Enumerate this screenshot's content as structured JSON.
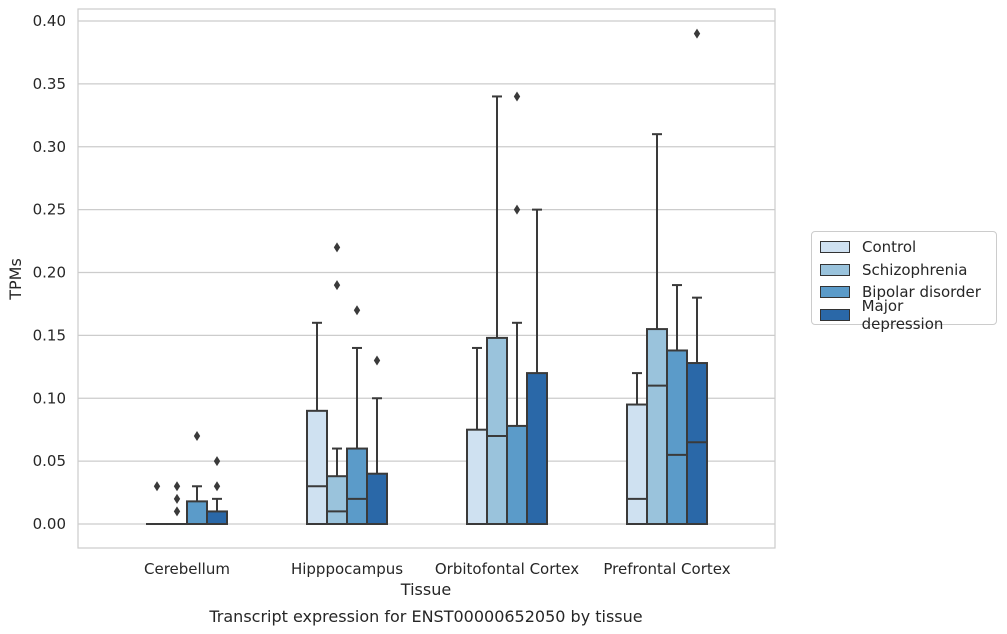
{
  "chart_data": {
    "type": "box",
    "xlabel": "Tissue",
    "ylabel": "TPMs",
    "caption": "Transcript expression for ENST00000652050 by tissue",
    "ylim": [
      -0.018,
      0.41
    ],
    "yticks": [
      "0.00",
      "0.05",
      "0.10",
      "0.15",
      "0.20",
      "0.25",
      "0.30",
      "0.35",
      "0.40"
    ],
    "ytick_values": [
      0,
      0.05,
      0.1,
      0.15,
      0.2,
      0.25,
      0.3,
      0.35,
      0.4
    ],
    "grid": true,
    "legend_position": "right",
    "categories": [
      "Cerebellum",
      "Hipppocampus",
      "Orbitofontal Cortex",
      "Prefrontal Cortex"
    ],
    "series": [
      {
        "name": "Control",
        "color": "#cfe1f1",
        "boxes": [
          {
            "q1": 0,
            "median": 0,
            "q3": 0,
            "whislo": 0,
            "whishi": 0,
            "fliers": [
              0.03
            ]
          },
          {
            "q1": 0,
            "median": 0.03,
            "q3": 0.09,
            "whislo": 0,
            "whishi": 0.16,
            "fliers": []
          },
          {
            "q1": 0,
            "median": 0,
            "q3": 0.075,
            "whislo": 0,
            "whishi": 0.14,
            "fliers": []
          },
          {
            "q1": 0,
            "median": 0.02,
            "q3": 0.095,
            "whislo": 0,
            "whishi": 0.12,
            "fliers": []
          }
        ]
      },
      {
        "name": "Schizophrenia",
        "color": "#9ac3dc",
        "boxes": [
          {
            "q1": 0,
            "median": 0,
            "q3": 0,
            "whislo": 0,
            "whishi": 0,
            "fliers": [
              0.01,
              0.02,
              0.03
            ]
          },
          {
            "q1": 0,
            "median": 0.01,
            "q3": 0.038,
            "whislo": 0,
            "whishi": 0.06,
            "fliers": [
              0.19,
              0.22
            ]
          },
          {
            "q1": 0,
            "median": 0.07,
            "q3": 0.148,
            "whislo": 0,
            "whishi": 0.34,
            "fliers": []
          },
          {
            "q1": 0,
            "median": 0.11,
            "q3": 0.155,
            "whislo": 0,
            "whishi": 0.31,
            "fliers": []
          }
        ]
      },
      {
        "name": "Bipolar disorder",
        "color": "#5b9bc9",
        "boxes": [
          {
            "q1": 0,
            "median": 0,
            "q3": 0.018,
            "whislo": 0,
            "whishi": 0.03,
            "fliers": [
              0.07
            ]
          },
          {
            "q1": 0,
            "median": 0.02,
            "q3": 0.06,
            "whislo": 0,
            "whishi": 0.14,
            "fliers": [
              0.17
            ]
          },
          {
            "q1": 0,
            "median": 0,
            "q3": 0.078,
            "whislo": 0,
            "whishi": 0.16,
            "fliers": [
              0.25,
              0.34
            ]
          },
          {
            "q1": 0,
            "median": 0.055,
            "q3": 0.138,
            "whislo": 0,
            "whishi": 0.19,
            "fliers": []
          }
        ]
      },
      {
        "name": "Major depression",
        "color": "#2a68a8",
        "boxes": [
          {
            "q1": 0,
            "median": 0,
            "q3": 0.01,
            "whislo": 0,
            "whishi": 0.02,
            "fliers": [
              0.03,
              0.05
            ]
          },
          {
            "q1": 0,
            "median": 0,
            "q3": 0.04,
            "whislo": 0,
            "whishi": 0.1,
            "fliers": [
              0.13
            ]
          },
          {
            "q1": 0,
            "median": 0,
            "q3": 0.12,
            "whislo": 0,
            "whishi": 0.25,
            "fliers": []
          },
          {
            "q1": 0,
            "median": 0.065,
            "q3": 0.128,
            "whislo": 0,
            "whishi": 0.18,
            "fliers": [
              0.39
            ]
          }
        ]
      }
    ]
  }
}
